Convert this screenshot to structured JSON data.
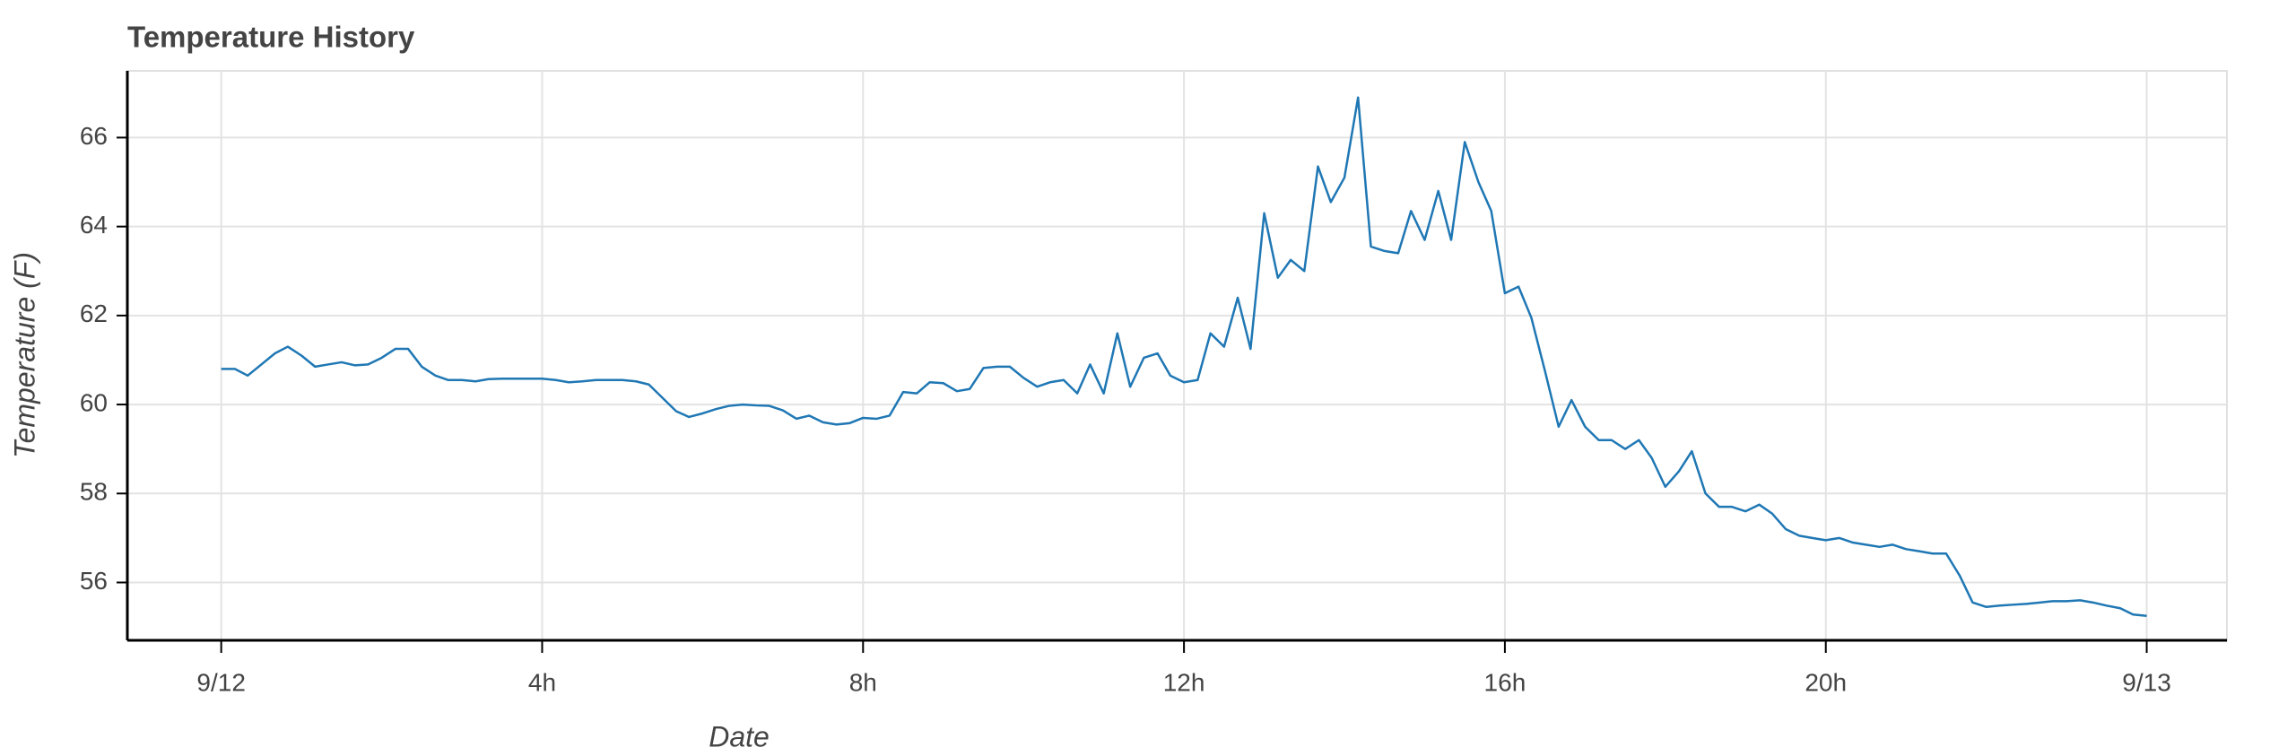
{
  "chart_data": {
    "type": "line",
    "title": "Temperature History",
    "xlabel": "Date",
    "ylabel": "Temperature (F)",
    "x": [
      0,
      0.17,
      0.33,
      0.5,
      0.67,
      0.83,
      1,
      1.17,
      1.33,
      1.5,
      1.67,
      1.83,
      2,
      2.17,
      2.33,
      2.5,
      2.67,
      2.83,
      3,
      3.17,
      3.33,
      3.5,
      3.67,
      3.83,
      4,
      4.17,
      4.33,
      4.5,
      4.67,
      4.83,
      5,
      5.17,
      5.33,
      5.5,
      5.67,
      5.83,
      6,
      6.17,
      6.33,
      6.5,
      6.67,
      6.83,
      7,
      7.17,
      7.33,
      7.5,
      7.67,
      7.83,
      8,
      8.17,
      8.33,
      8.5,
      8.67,
      8.83,
      9,
      9.17,
      9.33,
      9.5,
      9.67,
      9.83,
      10,
      10.17,
      10.33,
      10.5,
      10.67,
      10.83,
      11,
      11.17,
      11.33,
      11.5,
      11.67,
      11.83,
      12,
      12.17,
      12.33,
      12.5,
      12.67,
      12.83,
      13,
      13.17,
      13.33,
      13.5,
      13.67,
      13.83,
      14,
      14.17,
      14.33,
      14.5,
      14.67,
      14.83,
      15,
      15.17,
      15.33,
      15.5,
      15.67,
      15.83,
      16,
      16.17,
      16.33,
      16.5,
      16.67,
      16.83,
      17,
      17.17,
      17.33,
      17.5,
      17.67,
      17.83,
      18,
      18.17,
      18.33,
      18.5,
      18.67,
      18.83,
      19,
      19.17,
      19.33,
      19.5,
      19.67,
      19.83,
      20,
      20.17,
      20.33,
      20.5,
      20.67,
      20.83,
      21,
      21.17,
      21.33,
      21.5,
      21.67,
      21.83,
      22,
      22.17,
      22.33,
      22.5,
      22.67,
      22.83,
      23,
      23.17,
      23.33,
      23.5,
      23.67,
      23.83,
      24
    ],
    "series": [
      {
        "name": "Temperature",
        "color": "#1f77b4",
        "values": [
          60.8,
          60.8,
          60.65,
          60.9,
          61.15,
          61.3,
          61.1,
          60.85,
          60.9,
          60.95,
          60.88,
          60.9,
          61.05,
          61.25,
          61.25,
          60.85,
          60.65,
          60.55,
          60.55,
          60.52,
          60.57,
          60.58,
          60.58,
          60.58,
          60.58,
          60.55,
          60.5,
          60.52,
          60.55,
          60.55,
          60.55,
          60.52,
          60.45,
          60.15,
          59.85,
          59.72,
          59.8,
          59.9,
          59.97,
          60.0,
          59.98,
          59.97,
          59.87,
          59.68,
          59.75,
          59.6,
          59.55,
          59.58,
          59.7,
          59.68,
          59.75,
          60.28,
          60.25,
          60.5,
          60.48,
          60.3,
          60.35,
          60.82,
          60.85,
          60.85,
          60.6,
          60.4,
          60.5,
          60.55,
          60.25,
          60.9,
          60.25,
          61.6,
          60.4,
          61.05,
          61.15,
          60.65,
          60.5,
          60.55,
          61.6,
          61.3,
          62.4,
          61.25,
          64.3,
          62.85,
          63.25,
          63.0,
          65.35,
          64.55,
          65.1,
          66.9,
          63.55,
          63.45,
          63.4,
          64.35,
          63.7,
          64.8,
          63.7,
          65.9,
          65.0,
          64.35,
          62.5,
          62.65,
          61.95,
          60.75,
          59.5,
          60.1,
          59.5,
          59.2,
          59.2,
          59.0,
          59.2,
          58.8,
          58.15,
          58.5,
          58.95,
          58.0,
          57.7,
          57.7,
          57.6,
          57.75,
          57.55,
          57.2,
          57.05,
          57.0,
          56.95,
          57.0,
          56.9,
          56.85,
          56.8,
          56.85,
          56.75,
          56.7,
          56.65,
          56.65,
          56.15,
          55.55,
          55.45,
          55.48,
          55.5,
          55.52,
          55.55,
          55.58,
          55.58,
          55.6,
          55.55,
          55.48,
          55.42,
          55.28,
          55.25
        ]
      }
    ],
    "xlim": [
      -1.17,
      25.0
    ],
    "xticks": [
      {
        "value": 0,
        "label": "9/12"
      },
      {
        "value": 4,
        "label": "4h"
      },
      {
        "value": 8,
        "label": "8h"
      },
      {
        "value": 12,
        "label": "12h"
      },
      {
        "value": 16,
        "label": "16h"
      },
      {
        "value": 20,
        "label": "20h"
      },
      {
        "value": 24,
        "label": "9/13"
      }
    ],
    "ylim": [
      54.7,
      67.5
    ],
    "yticks": [
      56,
      58,
      60,
      62,
      64,
      66
    ],
    "grid": true
  }
}
